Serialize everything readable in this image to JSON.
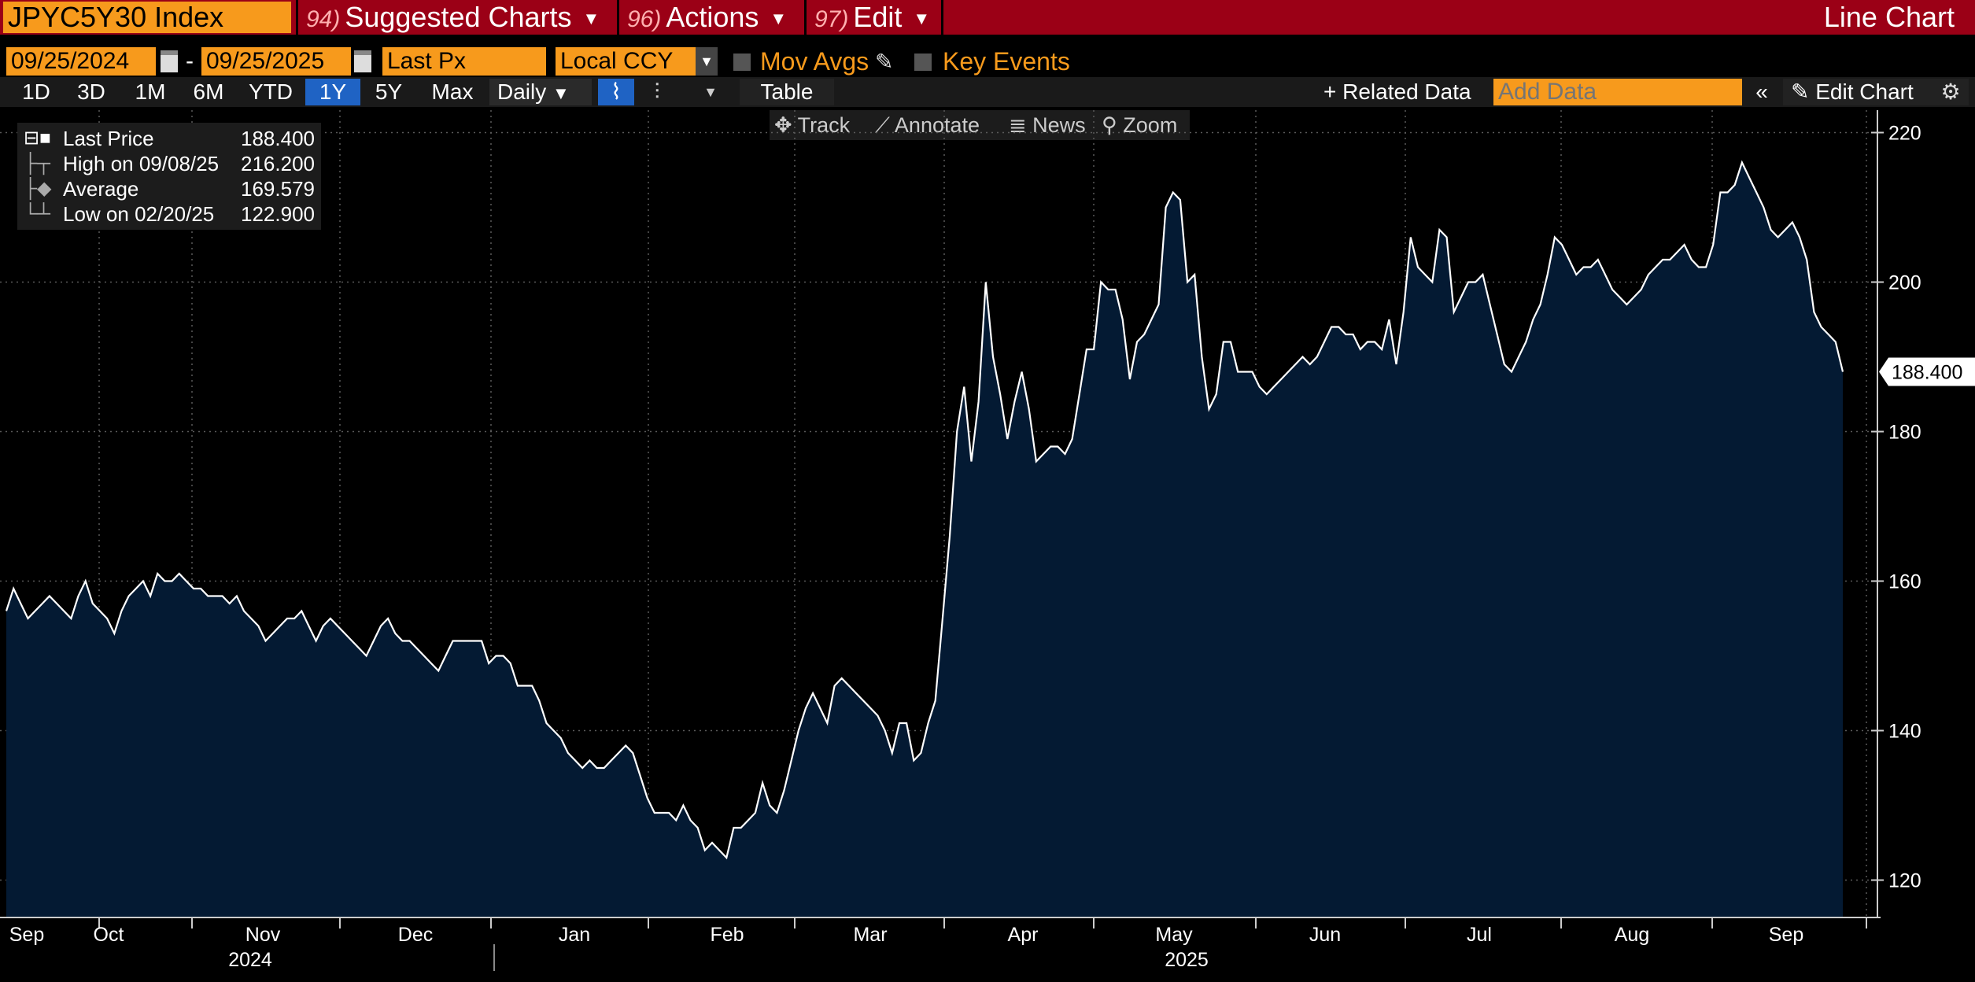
{
  "header": {
    "ticker": "JPYC5Y30 Index",
    "menus": [
      {
        "num": "94)",
        "label": "Suggested Charts"
      },
      {
        "num": "96)",
        "label": "Actions"
      },
      {
        "num": "97)",
        "label": "Edit"
      }
    ],
    "chart_type": "Line Chart"
  },
  "controls": {
    "start_date": "09/25/2024",
    "end_date": "09/25/2025",
    "field": "Last Px",
    "currency": "Local CCY",
    "mov_avgs": "Mov Avgs",
    "key_events": "Key Events"
  },
  "toolbar": {
    "ranges": [
      "1D",
      "3D",
      "1M",
      "6M",
      "YTD",
      "1Y",
      "5Y",
      "Max"
    ],
    "active_range": "1Y",
    "frequency": "Daily",
    "table": "Table",
    "related_data": "Related Data",
    "add_data_placeholder": "Add Data",
    "edit_chart": "Edit Chart"
  },
  "chart_tools": {
    "track": "Track",
    "annotate": "Annotate",
    "news": "News",
    "zoom": "Zoom"
  },
  "legend": {
    "last_label": "Last Price",
    "last_value": "188.400",
    "high_label": "High on 09/08/25",
    "high_value": "216.200",
    "avg_label": "Average",
    "avg_value": "169.579",
    "low_label": "Low on 02/20/25",
    "low_value": "122.900"
  },
  "colors": {
    "header_bg": "#9b0016",
    "field_bg": "#f79a1c",
    "active_bg": "#1f63c4",
    "area_fill": "#041a33",
    "line": "#ffffff"
  },
  "chart_data": {
    "type": "area",
    "ylim": [
      115,
      223
    ],
    "yticks": [
      120,
      140,
      160,
      180,
      200,
      220
    ],
    "last_value_label": "188.400",
    "x_month_labels": [
      "Sep",
      "Oct",
      "Nov",
      "Dec",
      "Jan",
      "Feb",
      "Mar",
      "Apr",
      "May",
      "Jun",
      "Jul",
      "Aug",
      "Sep"
    ],
    "x_year_labels": [
      "2024",
      "2025"
    ],
    "series": [
      {
        "values": [
          156,
          159,
          157,
          155,
          156,
          157,
          158,
          157,
          156,
          155,
          158,
          160,
          157,
          156,
          155,
          153,
          156,
          158,
          159,
          160,
          158,
          161,
          160,
          160,
          161,
          160,
          159,
          159,
          158,
          158,
          158,
          157,
          158,
          156,
          155,
          154,
          152,
          153,
          154,
          155,
          155,
          156,
          154,
          152,
          154,
          155,
          154,
          153,
          152,
          151,
          150,
          152,
          154,
          155,
          153,
          152,
          152,
          151,
          150,
          149,
          148,
          150,
          152,
          152,
          152,
          152,
          152,
          149,
          150,
          150,
          149,
          146,
          146,
          146,
          144,
          141,
          140,
          139,
          137,
          136,
          135,
          136,
          135,
          135,
          136,
          137,
          138,
          137,
          134,
          131,
          129,
          129,
          129,
          128,
          130,
          128,
          127,
          124,
          125,
          124,
          123,
          127,
          127,
          128,
          129,
          133,
          130,
          129,
          132,
          136,
          140,
          143,
          145,
          143,
          141,
          146,
          147,
          146,
          145,
          144,
          143,
          142,
          140,
          137,
          141,
          141,
          136,
          137,
          141,
          144,
          155,
          166,
          180,
          186,
          176,
          184,
          200,
          190,
          185,
          179,
          184,
          188,
          183,
          176,
          177,
          178,
          178,
          177,
          179,
          185,
          191,
          191,
          200,
          199,
          199,
          195,
          187,
          192,
          193,
          195,
          197,
          210,
          212,
          211,
          200,
          201,
          190,
          183,
          185,
          192,
          192,
          188,
          188,
          188,
          186,
          185,
          186,
          187,
          188,
          189,
          190,
          189,
          190,
          192,
          194,
          194,
          193,
          193,
          191,
          192,
          192,
          191,
          195,
          189,
          196,
          206,
          202,
          201,
          200,
          207,
          206,
          196,
          198,
          200,
          200,
          201,
          197,
          193,
          189,
          188,
          190,
          192,
          195,
          197,
          201,
          206,
          205,
          203,
          201,
          202,
          202,
          203,
          201,
          199,
          198,
          197,
          198,
          199,
          201,
          202,
          203,
          203,
          204,
          205,
          203,
          202,
          202,
          205,
          212,
          212,
          213,
          216,
          214,
          212,
          210,
          207,
          206,
          207,
          208,
          206,
          203,
          196,
          194,
          193,
          192,
          188
        ]
      }
    ]
  }
}
